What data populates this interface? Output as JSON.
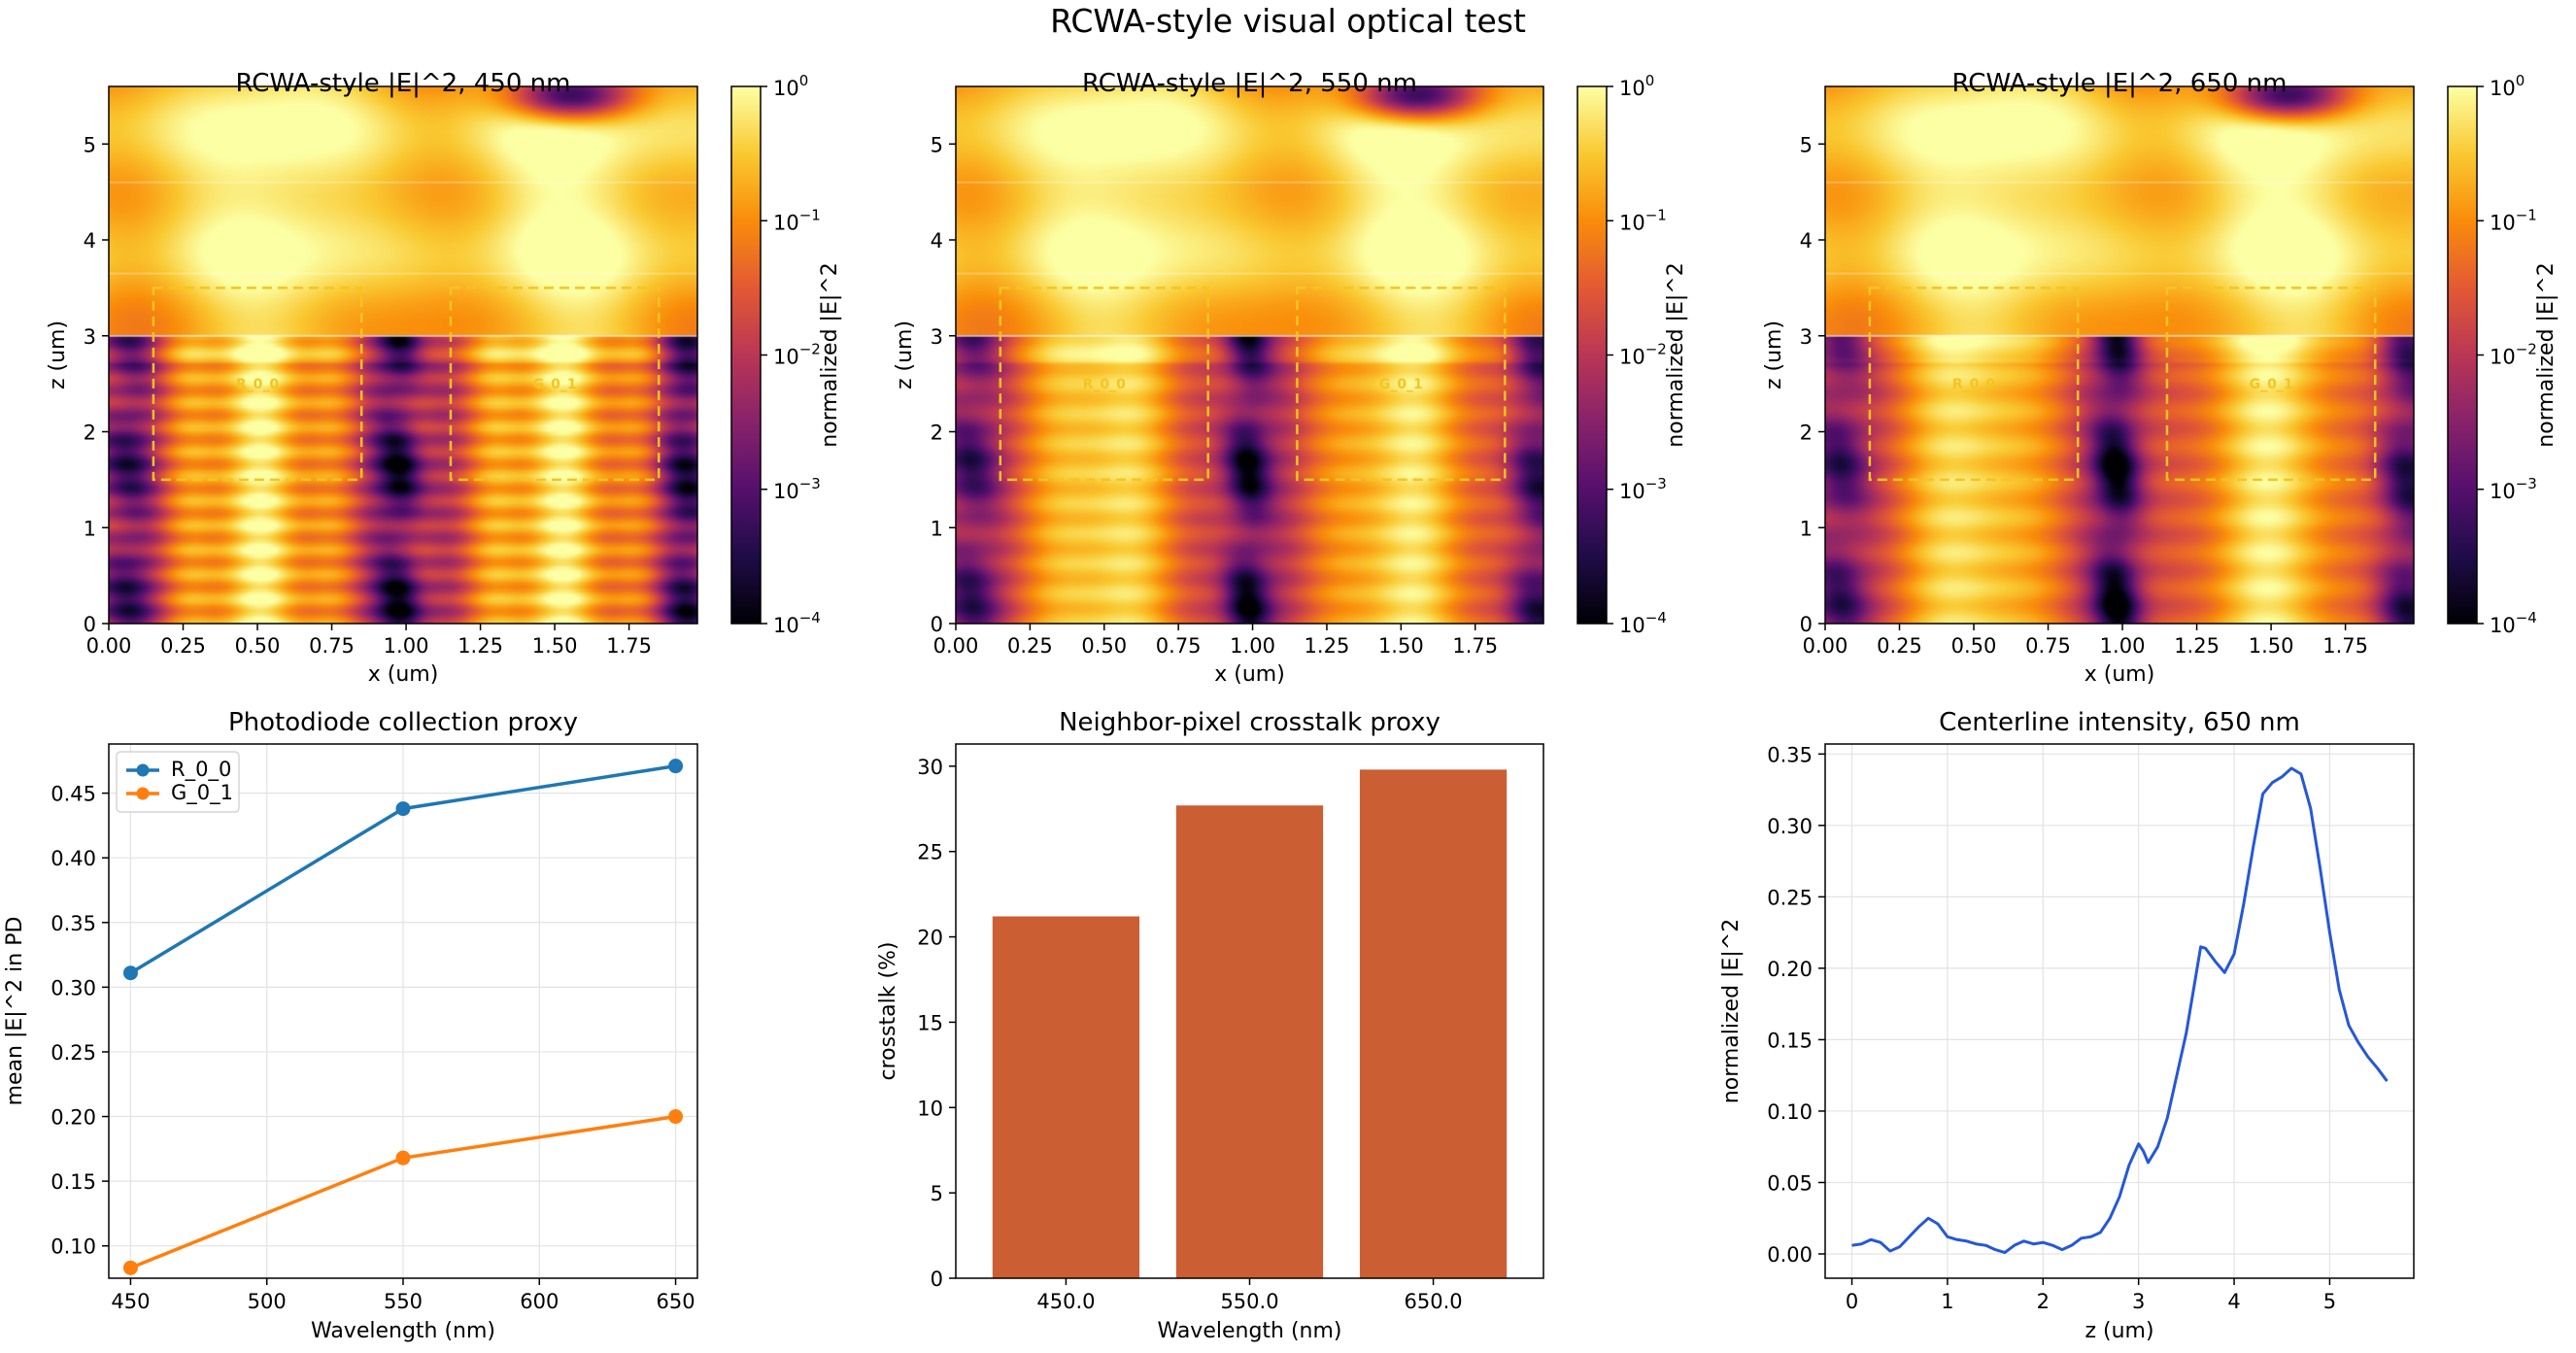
{
  "suptitle": "RCWA-style visual optical test",
  "colors": {
    "r_series": "#1f77b4",
    "g_series": "#ff7f0e",
    "bar": "#cc5e33",
    "centerline": "#2458d8",
    "pd_box": "#f5c422"
  },
  "chart_data": [
    {
      "type": "heatmap",
      "title": "RCWA-style |E|^2, 450 nm",
      "wavelength_nm": 450,
      "xlabel": "x (um)",
      "ylabel": "z (um)",
      "xlim": [
        0,
        1.98
      ],
      "ylim": [
        0,
        5.6
      ],
      "x_ticks": [
        "0.00",
        "0.25",
        "0.50",
        "0.75",
        "1.00",
        "1.25",
        "1.50",
        "1.75"
      ],
      "y_ticks": [
        "0",
        "1",
        "2",
        "3",
        "4",
        "5"
      ],
      "colorbar_label": "normalized |E|^2",
      "colorbar_scale": "log",
      "colorbar_range": [
        0.0001,
        1
      ],
      "colorbar_ticks": [
        {
          "base": "10",
          "exp": "0"
        },
        {
          "base": "10",
          "exp": "−1"
        },
        {
          "base": "10",
          "exp": "−2"
        },
        {
          "base": "10",
          "exp": "−3"
        },
        {
          "base": "10",
          "exp": "−4"
        }
      ],
      "regions": [
        {
          "name": "R_0_0",
          "x": [
            0.15,
            0.85
          ],
          "z": [
            1.5,
            3.5
          ]
        },
        {
          "name": "G_0_1",
          "x": [
            1.15,
            1.85
          ],
          "z": [
            1.5,
            3.5
          ]
        }
      ]
    },
    {
      "type": "heatmap",
      "title": "RCWA-style |E|^2, 550 nm",
      "wavelength_nm": 550,
      "xlabel": "x (um)",
      "ylabel": "z (um)",
      "xlim": [
        0,
        1.98
      ],
      "ylim": [
        0,
        5.6
      ],
      "x_ticks": [
        "0.00",
        "0.25",
        "0.50",
        "0.75",
        "1.00",
        "1.25",
        "1.50",
        "1.75"
      ],
      "y_ticks": [
        "0",
        "1",
        "2",
        "3",
        "4",
        "5"
      ],
      "colorbar_label": "normalized |E|^2",
      "colorbar_scale": "log",
      "colorbar_range": [
        0.0001,
        1
      ],
      "colorbar_ticks": [
        {
          "base": "10",
          "exp": "0"
        },
        {
          "base": "10",
          "exp": "−1"
        },
        {
          "base": "10",
          "exp": "−2"
        },
        {
          "base": "10",
          "exp": "−3"
        },
        {
          "base": "10",
          "exp": "−4"
        }
      ],
      "regions": [
        {
          "name": "R_0_0",
          "x": [
            0.15,
            0.85
          ],
          "z": [
            1.5,
            3.5
          ]
        },
        {
          "name": "G_0_1",
          "x": [
            1.15,
            1.85
          ],
          "z": [
            1.5,
            3.5
          ]
        }
      ]
    },
    {
      "type": "heatmap",
      "title": "RCWA-style |E|^2, 650 nm",
      "wavelength_nm": 650,
      "xlabel": "x (um)",
      "ylabel": "z (um)",
      "xlim": [
        0,
        1.98
      ],
      "ylim": [
        0,
        5.6
      ],
      "x_ticks": [
        "0.00",
        "0.25",
        "0.50",
        "0.75",
        "1.00",
        "1.25",
        "1.50",
        "1.75"
      ],
      "y_ticks": [
        "0",
        "1",
        "2",
        "3",
        "4",
        "5"
      ],
      "colorbar_label": "normalized |E|^2",
      "colorbar_scale": "log",
      "colorbar_range": [
        0.0001,
        1
      ],
      "colorbar_ticks": [
        {
          "base": "10",
          "exp": "0"
        },
        {
          "base": "10",
          "exp": "−1"
        },
        {
          "base": "10",
          "exp": "−2"
        },
        {
          "base": "10",
          "exp": "−3"
        },
        {
          "base": "10",
          "exp": "−4"
        }
      ],
      "regions": [
        {
          "name": "R_0_0",
          "x": [
            0.15,
            0.85
          ],
          "z": [
            1.5,
            3.5
          ]
        },
        {
          "name": "G_0_1",
          "x": [
            1.15,
            1.85
          ],
          "z": [
            1.5,
            3.5
          ]
        }
      ]
    },
    {
      "type": "line",
      "title": "Photodiode collection proxy",
      "xlabel": "Wavelength (nm)",
      "ylabel": "mean |E|^2 in PD",
      "x": [
        450,
        550,
        650
      ],
      "xlim": [
        442,
        658
      ],
      "ylim": [
        0.075,
        0.488
      ],
      "x_ticks": [
        "450",
        "500",
        "550",
        "600",
        "650"
      ],
      "y_ticks": [
        "0.10",
        "0.15",
        "0.20",
        "0.25",
        "0.30",
        "0.35",
        "0.40",
        "0.45"
      ],
      "grid": true,
      "legend": "upper-left",
      "series": [
        {
          "name": "R_0_0",
          "values": [
            0.311,
            0.438,
            0.471
          ]
        },
        {
          "name": "G_0_1",
          "values": [
            0.083,
            0.168,
            0.2
          ]
        }
      ]
    },
    {
      "type": "bar",
      "title": "Neighbor-pixel crosstalk proxy",
      "xlabel": "Wavelength (nm)",
      "ylabel": "crosstalk (%)",
      "categories": [
        "450.0",
        "550.0",
        "650.0"
      ],
      "values": [
        21.2,
        27.7,
        29.8
      ],
      "ylim": [
        0,
        31.3
      ],
      "y_ticks": [
        "0",
        "5",
        "10",
        "15",
        "20",
        "25",
        "30"
      ]
    },
    {
      "type": "line",
      "title": "Centerline intensity, 650 nm",
      "xlabel": "z (um)",
      "ylabel": "normalized |E|^2",
      "xlim": [
        -0.28,
        5.88
      ],
      "ylim": [
        -0.017,
        0.357
      ],
      "x_ticks": [
        "0",
        "1",
        "2",
        "3",
        "4",
        "5"
      ],
      "y_ticks": [
        "0.00",
        "0.05",
        "0.10",
        "0.15",
        "0.20",
        "0.25",
        "0.30",
        "0.35"
      ],
      "grid": true,
      "x": [
        0,
        0.1,
        0.2,
        0.3,
        0.4,
        0.5,
        0.6,
        0.7,
        0.8,
        0.9,
        1.0,
        1.1,
        1.2,
        1.3,
        1.4,
        1.5,
        1.6,
        1.7,
        1.8,
        1.9,
        2.0,
        2.1,
        2.2,
        2.3,
        2.4,
        2.5,
        2.6,
        2.7,
        2.8,
        2.9,
        3.0,
        3.05,
        3.1,
        3.2,
        3.3,
        3.4,
        3.5,
        3.6,
        3.65,
        3.7,
        3.8,
        3.9,
        4.0,
        4.1,
        4.2,
        4.3,
        4.4,
        4.5,
        4.6,
        4.7,
        4.8,
        4.9,
        5.0,
        5.1,
        5.2,
        5.3,
        5.4,
        5.5,
        5.6
      ],
      "values": [
        0.006,
        0.007,
        0.01,
        0.008,
        0.002,
        0.005,
        0.012,
        0.019,
        0.025,
        0.021,
        0.012,
        0.01,
        0.009,
        0.007,
        0.006,
        0.003,
        0.001,
        0.006,
        0.009,
        0.007,
        0.008,
        0.006,
        0.003,
        0.006,
        0.011,
        0.012,
        0.015,
        0.025,
        0.04,
        0.062,
        0.077,
        0.072,
        0.064,
        0.075,
        0.095,
        0.125,
        0.155,
        0.195,
        0.215,
        0.214,
        0.205,
        0.197,
        0.21,
        0.245,
        0.285,
        0.322,
        0.33,
        0.334,
        0.34,
        0.336,
        0.312,
        0.27,
        0.225,
        0.185,
        0.16,
        0.148,
        0.138,
        0.13,
        0.121
      ]
    }
  ]
}
